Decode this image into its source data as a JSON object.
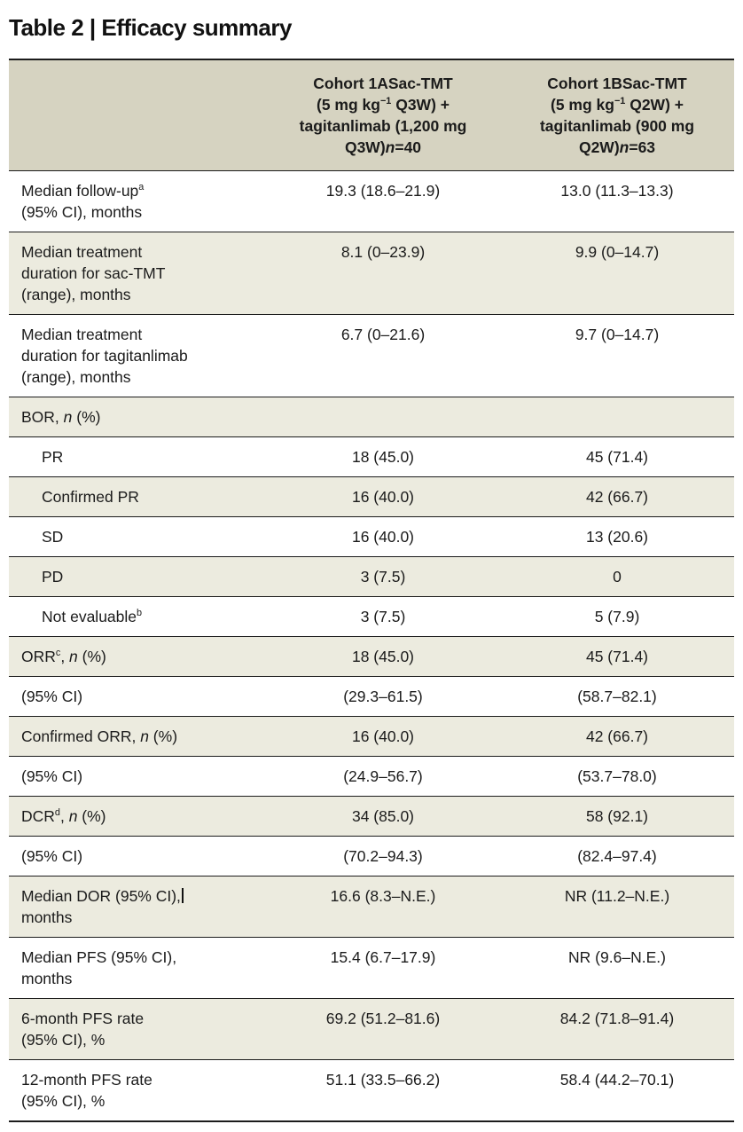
{
  "title": "Table 2 | Efficacy summary",
  "colors": {
    "header_bg": "#d6d3c1",
    "row_alt_bg": "#ecebdf",
    "border": "#1c1c1c",
    "text": "#1b1b1b",
    "page_bg": "#ffffff"
  },
  "header": {
    "columns": [
      {
        "name": "cohort-1a",
        "segments": [
          {
            "t": "Cohort 1ASac-TMT"
          },
          {
            "br": true
          },
          {
            "t": "(5 mg kg"
          },
          {
            "t": "−1",
            "sup": true
          },
          {
            "t": " Q3W) +"
          },
          {
            "br": true
          },
          {
            "t": "tagitanlimab (1,200 mg"
          },
          {
            "br": true
          },
          {
            "t": "Q3W)"
          },
          {
            "t": "n",
            "i": true
          },
          {
            "t": "=40"
          }
        ]
      },
      {
        "name": "cohort-1b",
        "segments": [
          {
            "t": "Cohort 1BSac-TMT"
          },
          {
            "br": true
          },
          {
            "t": "(5 mg kg"
          },
          {
            "t": "−1",
            "sup": true
          },
          {
            "t": " Q2W) +"
          },
          {
            "br": true
          },
          {
            "t": "tagitanlimab (900 mg"
          },
          {
            "br": true
          },
          {
            "t": "Q2W)"
          },
          {
            "t": "n",
            "i": true
          },
          {
            "t": "=63"
          }
        ]
      }
    ]
  },
  "rows": [
    {
      "indent": false,
      "label": [
        {
          "t": "Median follow-up"
        },
        {
          "t": "a",
          "sup": true
        },
        {
          "br": true
        },
        {
          "t": "(95% CI), months"
        }
      ],
      "values": [
        "19.3 (18.6–21.9)",
        "13.0 (11.3–13.3)"
      ]
    },
    {
      "indent": false,
      "label": [
        {
          "t": "Median treatment"
        },
        {
          "br": true
        },
        {
          "t": "duration for sac-TMT"
        },
        {
          "br": true
        },
        {
          "t": "(range), months"
        }
      ],
      "values": [
        "8.1 (0–23.9)",
        "9.9 (0–14.7)"
      ]
    },
    {
      "indent": false,
      "label": [
        {
          "t": "Median treatment"
        },
        {
          "br": true
        },
        {
          "t": "duration for tagitanlimab"
        },
        {
          "br": true
        },
        {
          "t": "(range), months"
        }
      ],
      "values": [
        "6.7 (0–21.6)",
        "9.7 (0–14.7)"
      ]
    },
    {
      "indent": false,
      "label": [
        {
          "t": "BOR, "
        },
        {
          "t": "n",
          "i": true
        },
        {
          "t": " (%)"
        }
      ],
      "values": [
        "",
        ""
      ]
    },
    {
      "indent": true,
      "label": [
        {
          "t": "PR"
        }
      ],
      "values": [
        "18 (45.0)",
        "45 (71.4)"
      ]
    },
    {
      "indent": true,
      "label": [
        {
          "t": "Confirmed PR"
        }
      ],
      "values": [
        "16 (40.0)",
        "42 (66.7)"
      ]
    },
    {
      "indent": true,
      "label": [
        {
          "t": "SD"
        }
      ],
      "values": [
        "16 (40.0)",
        "13 (20.6)"
      ]
    },
    {
      "indent": true,
      "label": [
        {
          "t": "PD"
        }
      ],
      "values": [
        "3 (7.5)",
        "0"
      ]
    },
    {
      "indent": true,
      "label": [
        {
          "t": "Not evaluable"
        },
        {
          "t": "b",
          "sup": true
        }
      ],
      "values": [
        "3 (7.5)",
        "5 (7.9)"
      ]
    },
    {
      "indent": false,
      "label": [
        {
          "t": "ORR"
        },
        {
          "t": "c",
          "sup": true
        },
        {
          "t": ", "
        },
        {
          "t": "n",
          "i": true
        },
        {
          "t": " (%)"
        }
      ],
      "values": [
        "18 (45.0)",
        "45 (71.4)"
      ]
    },
    {
      "indent": false,
      "label": [
        {
          "t": "(95% CI)"
        }
      ],
      "values": [
        "(29.3–61.5)",
        "(58.7–82.1)"
      ]
    },
    {
      "indent": false,
      "label": [
        {
          "t": "Confirmed ORR, "
        },
        {
          "t": "n",
          "i": true
        },
        {
          "t": " (%)"
        }
      ],
      "values": [
        "16 (40.0)",
        "42 (66.7)"
      ]
    },
    {
      "indent": false,
      "label": [
        {
          "t": "(95% CI)"
        }
      ],
      "values": [
        "(24.9–56.7)",
        "(53.7–78.0)"
      ]
    },
    {
      "indent": false,
      "label": [
        {
          "t": "DCR"
        },
        {
          "t": "d",
          "sup": true
        },
        {
          "t": ", "
        },
        {
          "t": "n",
          "i": true
        },
        {
          "t": " (%)"
        }
      ],
      "values": [
        "34 (85.0)",
        "58 (92.1)"
      ]
    },
    {
      "indent": false,
      "label": [
        {
          "t": "(95% CI)"
        }
      ],
      "values": [
        "(70.2–94.3)",
        "(82.4–97.4)"
      ]
    },
    {
      "indent": false,
      "label": [
        {
          "t": "Median DOR (95% CI),"
        },
        {
          "caret": true
        },
        {
          "br": true
        },
        {
          "t": "months"
        }
      ],
      "values": [
        "16.6 (8.3–N.E.)",
        "NR (11.2–N.E.)"
      ]
    },
    {
      "indent": false,
      "label": [
        {
          "t": "Median PFS (95% CI),"
        },
        {
          "br": true
        },
        {
          "t": "months"
        }
      ],
      "values": [
        "15.4 (6.7–17.9)",
        "NR (9.6–N.E.)"
      ]
    },
    {
      "indent": false,
      "label": [
        {
          "t": "6-month PFS rate"
        },
        {
          "br": true
        },
        {
          "t": "(95% CI), %"
        }
      ],
      "values": [
        "69.2 (51.2–81.6)",
        "84.2 (71.8–91.4)"
      ]
    },
    {
      "indent": false,
      "label": [
        {
          "t": "12-month PFS rate"
        },
        {
          "br": true
        },
        {
          "t": "(95% CI), %"
        }
      ],
      "values": [
        "51.1 (33.5–66.2)",
        "58.4 (44.2–70.1)"
      ]
    }
  ]
}
